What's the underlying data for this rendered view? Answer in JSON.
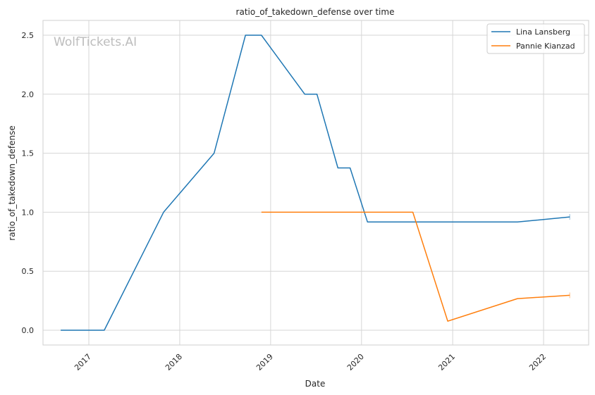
{
  "chart_data": {
    "type": "line",
    "title": "ratio_of_takedown_defense over time",
    "xlabel": "Date",
    "ylabel": "ratio_of_takedown_defense",
    "watermark": "WolfTickets.AI",
    "x_ticks": [
      "2017",
      "2018",
      "2019",
      "2020",
      "2021",
      "2022"
    ],
    "y_ticks": [
      "0.0",
      "0.5",
      "1.0",
      "1.5",
      "2.0",
      "2.5"
    ],
    "xlim": [
      "2016-07-01",
      "2022-07-01"
    ],
    "ylim": [
      -0.125,
      2.625
    ],
    "grid": true,
    "legend_position": "top-right",
    "series": [
      {
        "name": "Lina Lansberg",
        "color": "#1f77b4",
        "points": [
          [
            "2016-09-10",
            0.0
          ],
          [
            "2017-03-04",
            0.0
          ],
          [
            "2017-10-28",
            1.0
          ],
          [
            "2018-05-19",
            1.5
          ],
          [
            "2018-09-22",
            2.5
          ],
          [
            "2018-11-25",
            2.5
          ],
          [
            "2019-05-18",
            2.0
          ],
          [
            "2019-07-06",
            2.0
          ],
          [
            "2019-09-28",
            1.375
          ],
          [
            "2019-11-16",
            1.375
          ],
          [
            "2020-01-25",
            0.917
          ],
          [
            "2021-09-18",
            0.917
          ],
          [
            "2022-04-16",
            0.96
          ]
        ]
      },
      {
        "name": "Pannie Kianzad",
        "color": "#ff7f0e",
        "points": [
          [
            "2018-11-25",
            1.0
          ],
          [
            "2020-07-25",
            1.0
          ],
          [
            "2020-12-12",
            0.077
          ],
          [
            "2021-09-18",
            0.268
          ],
          [
            "2022-04-16",
            0.296
          ]
        ]
      }
    ]
  }
}
